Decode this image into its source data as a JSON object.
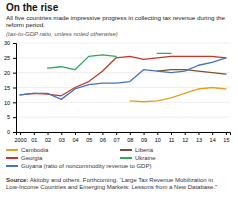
{
  "chart_data": {
    "type": "line",
    "title": "On the rise",
    "subtitle": "All five countries made impressive progress in collecting tax revenue during the\nreform period.",
    "note": "(tax-to-GDP ratio, unless noted otherwise)",
    "source": [
      "Source:",
      " Akitoby and others. Forthcoming. “Large Tax Revenue Mobilization in\nLow-Income Countries and Emerging Markets: Lessons from a New Database.”"
    ],
    "categories": [
      "2000",
      "01",
      "02",
      "03",
      "04",
      "05",
      "06",
      "07",
      "08",
      "09",
      "10",
      "11",
      "12",
      "13",
      "14",
      "15"
    ],
    "ylim": [
      0,
      30
    ],
    "yticks": [
      0,
      5,
      10,
      15,
      20,
      25,
      30
    ],
    "grid": true,
    "series": [
      {
        "name": "Cambodia",
        "color": "#e8a020",
        "values": [
          null,
          null,
          null,
          null,
          null,
          null,
          null,
          null,
          10.5,
          10.2,
          10.5,
          11.5,
          13.0,
          14.5,
          15.0,
          14.5
        ]
      },
      {
        "name": "Liberia",
        "color": "#7b4f2e",
        "values": [
          null,
          null,
          null,
          null,
          null,
          null,
          null,
          null,
          null,
          null,
          20.5,
          21.0,
          21.0,
          20.5,
          20.0,
          19.5
        ]
      },
      {
        "name": "Georgia",
        "color": "#c0392b",
        "values": [
          12.5,
          13.0,
          12.8,
          12.2,
          15.0,
          17.0,
          20.5,
          25.0,
          25.5,
          24.5,
          25.0,
          25.5,
          25.5,
          25.5,
          25.5,
          25.0
        ]
      },
      {
        "name": "Ukraine",
        "color": "#2aaa5a",
        "values": [
          null,
          null,
          21.5,
          22.0,
          21.0,
          25.5,
          26.0,
          25.5,
          null,
          null,
          26.5,
          26.5,
          null,
          null,
          null,
          null
        ]
      },
      {
        "name": "Guyana (ratio of noncommodity revenue to GDP)",
        "color": "#4472c4",
        "values": [
          12.5,
          13.0,
          13.0,
          11.0,
          14.5,
          16.0,
          16.5,
          16.5,
          17.0,
          21.0,
          20.5,
          20.0,
          20.5,
          22.5,
          23.5,
          25.0
        ]
      }
    ]
  }
}
